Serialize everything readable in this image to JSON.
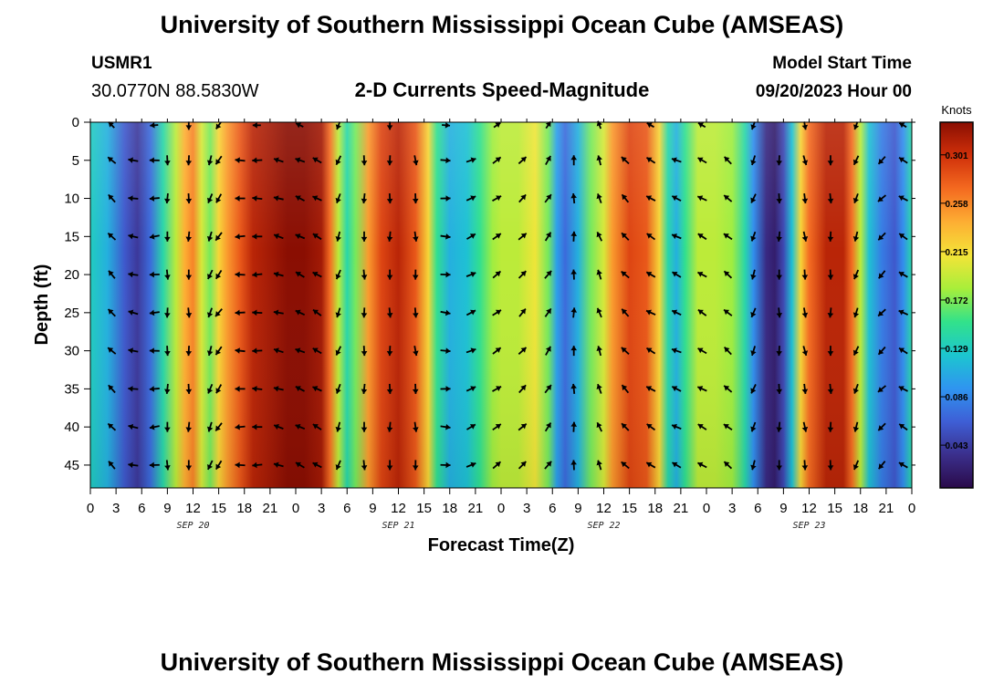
{
  "header": {
    "title": "University of Southern Mississippi Ocean Cube (AMSEAS)",
    "station": "USMR1",
    "location": "30.0770N  88.5830W",
    "chart_title": "2-D Currents Speed-Magnitude",
    "model_label": "Model Start Time",
    "model_time": "09/20/2023 Hour 00"
  },
  "footer": {
    "title": "University of Southern Mississippi Ocean Cube (AMSEAS)"
  },
  "colors": {
    "scale": [
      "#2a0a4a",
      "#3b2f8c",
      "#3e5fd6",
      "#2f95f0",
      "#1cc6cf",
      "#32e28a",
      "#a8ee3a",
      "#f4e438",
      "#fdae33",
      "#f46a20",
      "#d0300a",
      "#8a0e02"
    ]
  },
  "chart_data": {
    "type": "heatmap",
    "title": "2-D Currents Speed-Magnitude",
    "xlabel": "Forecast Time(Z)",
    "ylabel": "Depth (ft)",
    "x_tick_labels": [
      "0",
      "3",
      "6",
      "9",
      "12",
      "15",
      "18",
      "21",
      "0",
      "3",
      "6",
      "9",
      "12",
      "15",
      "18",
      "21",
      "0",
      "3",
      "6",
      "9",
      "12",
      "15",
      "18",
      "21",
      "0",
      "3",
      "6",
      "9",
      "12",
      "15",
      "18",
      "21",
      "0"
    ],
    "x_range_hours": [
      0,
      96
    ],
    "date_labels": [
      {
        "hour": 12,
        "label": "SEP 20"
      },
      {
        "hour": 36,
        "label": "SEP 21"
      },
      {
        "hour": 60,
        "label": "SEP 22"
      },
      {
        "hour": 84,
        "label": "SEP 23"
      }
    ],
    "y_tick_labels": [
      "0",
      "5",
      "10",
      "15",
      "20",
      "25",
      "30",
      "35",
      "40",
      "45"
    ],
    "y_range_ft": [
      0,
      48
    ],
    "colorbar": {
      "title": "Knots",
      "range": [
        0.005,
        0.33
      ],
      "tick_labels": [
        "0.301",
        "0.258",
        "0.215",
        "0.172",
        "0.129",
        "0.086",
        "0.043"
      ],
      "tick_values": [
        0.301,
        0.258,
        0.215,
        0.172,
        0.129,
        0.086,
        0.043
      ]
    },
    "speed_profile_knots": [
      [
        0,
        0.13
      ],
      [
        2,
        0.11
      ],
      [
        4,
        0.06
      ],
      [
        5.5,
        0.04
      ],
      [
        7,
        0.07
      ],
      [
        8.5,
        0.14
      ],
      [
        10,
        0.19
      ],
      [
        11,
        0.24
      ],
      [
        12,
        0.26
      ],
      [
        13,
        0.2
      ],
      [
        14,
        0.17
      ],
      [
        15,
        0.22
      ],
      [
        16,
        0.25
      ],
      [
        17.5,
        0.28
      ],
      [
        19,
        0.31
      ],
      [
        21,
        0.32
      ],
      [
        23,
        0.33
      ],
      [
        25,
        0.33
      ],
      [
        27,
        0.32
      ],
      [
        28,
        0.27
      ],
      [
        29,
        0.19
      ],
      [
        30,
        0.14
      ],
      [
        31,
        0.17
      ],
      [
        32.5,
        0.25
      ],
      [
        34,
        0.29
      ],
      [
        36,
        0.31
      ],
      [
        38,
        0.28
      ],
      [
        39.5,
        0.22
      ],
      [
        40.5,
        0.15
      ],
      [
        42,
        0.11
      ],
      [
        44,
        0.12
      ],
      [
        45.5,
        0.15
      ],
      [
        47,
        0.18
      ],
      [
        48,
        0.19
      ],
      [
        50,
        0.19
      ],
      [
        52,
        0.21
      ],
      [
        53.5,
        0.17
      ],
      [
        54.5,
        0.1
      ],
      [
        55.5,
        0.07
      ],
      [
        57,
        0.11
      ],
      [
        58.5,
        0.17
      ],
      [
        60,
        0.2
      ],
      [
        61,
        0.25
      ],
      [
        63,
        0.29
      ],
      [
        65,
        0.28
      ],
      [
        66.5,
        0.22
      ],
      [
        67.5,
        0.14
      ],
      [
        68.5,
        0.11
      ],
      [
        69.5,
        0.15
      ],
      [
        71,
        0.19
      ],
      [
        73,
        0.19
      ],
      [
        75,
        0.18
      ],
      [
        76.5,
        0.14
      ],
      [
        77.5,
        0.09
      ],
      [
        79,
        0.03
      ],
      [
        80,
        0.02
      ],
      [
        81,
        0.05
      ],
      [
        82,
        0.12
      ],
      [
        83,
        0.22
      ],
      [
        84,
        0.27
      ],
      [
        86,
        0.31
      ],
      [
        88,
        0.31
      ],
      [
        89,
        0.27
      ],
      [
        90,
        0.19
      ],
      [
        91,
        0.12
      ],
      [
        92.5,
        0.08
      ],
      [
        94,
        0.06
      ],
      [
        95,
        0.09
      ],
      [
        96,
        0.14
      ]
    ],
    "current_directions_deg": [
      {
        "hour": 2.5,
        "dir": 315
      },
      {
        "hour": 5,
        "dir": 280
      },
      {
        "hour": 7.5,
        "dir": 265
      },
      {
        "hour": 9,
        "dir": 180
      },
      {
        "hour": 11.5,
        "dir": 180
      },
      {
        "hour": 14,
        "dir": 200
      },
      {
        "hour": 15,
        "dir": 215
      },
      {
        "hour": 17.5,
        "dir": 270
      },
      {
        "hour": 19.5,
        "dir": 270
      },
      {
        "hour": 22,
        "dir": 285
      },
      {
        "hour": 24.5,
        "dir": 295
      },
      {
        "hour": 26.5,
        "dir": 300
      },
      {
        "hour": 29,
        "dir": 200
      },
      {
        "hour": 32,
        "dir": 180
      },
      {
        "hour": 35,
        "dir": 180
      },
      {
        "hour": 38,
        "dir": 175
      },
      {
        "hour": 41.5,
        "dir": 95
      },
      {
        "hour": 44.5,
        "dir": 65
      },
      {
        "hour": 47.5,
        "dir": 55
      },
      {
        "hour": 50.5,
        "dir": 45
      },
      {
        "hour": 53.5,
        "dir": 35
      },
      {
        "hour": 56.5,
        "dir": 0
      },
      {
        "hour": 59.5,
        "dir": 340
      },
      {
        "hour": 62.5,
        "dir": 315
      },
      {
        "hour": 65.5,
        "dir": 300
      },
      {
        "hour": 68.5,
        "dir": 295
      },
      {
        "hour": 71.5,
        "dir": 300
      },
      {
        "hour": 74.5,
        "dir": 310
      },
      {
        "hour": 77.5,
        "dir": 200
      },
      {
        "hour": 80.5,
        "dir": 180
      },
      {
        "hour": 83.5,
        "dir": 170
      },
      {
        "hour": 86.5,
        "dir": 180
      },
      {
        "hour": 89.5,
        "dir": 200
      },
      {
        "hour": 92.5,
        "dir": 225
      },
      {
        "hour": 95,
        "dir": 300
      }
    ]
  }
}
